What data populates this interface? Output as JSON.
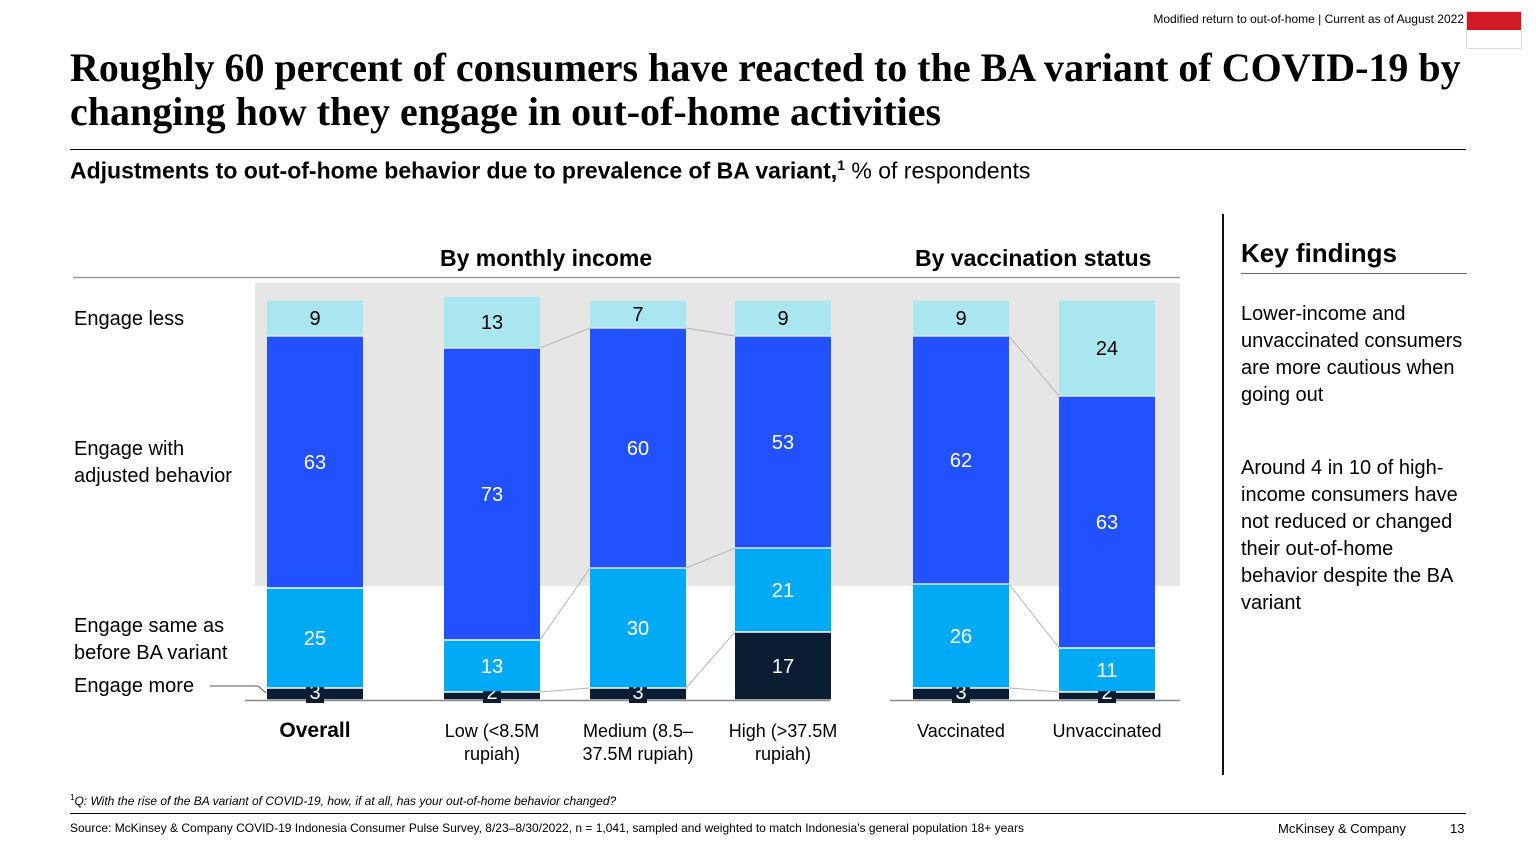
{
  "header": {
    "top_note": "Modified return to out-of-home | Current as of August 2022",
    "title": "Roughly 60 percent of consumers have reacted to the BA variant of COVID-19 by changing how they engage in out-of-home activities",
    "subtitle_bold": "Adjustments to out-of-home behavior due to prevalence of BA variant,",
    "subtitle_sup": "1",
    "subtitle_rest": " % of respondents",
    "flag_colors": {
      "top": "#d21a24",
      "bottom": "#ffffff"
    }
  },
  "chart_data": {
    "type": "bar",
    "stacked": true,
    "orientation": "vertical",
    "group_titles": {
      "income": "By monthly income",
      "vaccination": "By vaccination status"
    },
    "row_labels": {
      "engage_less": "Engage less",
      "adjusted_line1": "Engage with",
      "adjusted_line2": "adjusted behavior",
      "same_line1": "Engage same as",
      "same_line2": "before BA variant",
      "engage_more": "Engage more"
    },
    "categories": [
      {
        "label": "Overall",
        "bold": true
      },
      {
        "label": "Low (<8.5M\nrupiah)",
        "bold": false
      },
      {
        "label": "Medium (8.5–\n37.5M rupiah)",
        "bold": false
      },
      {
        "label": "High (>37.5M\nrupiah)",
        "bold": false
      },
      {
        "label": "Vaccinated",
        "bold": false
      },
      {
        "label": "Unvaccinated",
        "bold": false
      }
    ],
    "series": [
      {
        "name": "Engage more",
        "color": "#0b1d33",
        "values": [
          3,
          2,
          3,
          17,
          3,
          2
        ]
      },
      {
        "name": "Engage same as before BA variant",
        "color": "#00a9f4",
        "values": [
          25,
          13,
          30,
          21,
          26,
          11
        ]
      },
      {
        "name": "Engage with adjusted behavior",
        "color": "#2251ff",
        "values": [
          63,
          73,
          60,
          53,
          62,
          63
        ]
      },
      {
        "name": "Engage less",
        "color": "#aae6f0",
        "values": [
          9,
          13,
          7,
          9,
          9,
          24
        ]
      }
    ],
    "ylim": [
      0,
      100
    ],
    "highlight_band_color": "#e6e6e6"
  },
  "key_findings": {
    "title": "Key findings",
    "items": [
      "Lower-income and unvaccinated consumers are more cautious when going out",
      "Around 4 in 10 of high-income consumers have not reduced or changed their out-of-home behavior despite the BA variant"
    ]
  },
  "footer": {
    "footnote_sup": "1",
    "footnote": "Q: With the rise of the BA variant of COVID-19, how, if at all, has your out-of-home behavior changed?",
    "source": "Source: McKinsey & Company COVID-19 Indonesia Consumer Pulse Survey, 8/23–8/30/2022, n = 1,041, sampled and weighted to match Indonesia's general population 18+ years",
    "brand": "McKinsey & Company",
    "page": "13"
  }
}
